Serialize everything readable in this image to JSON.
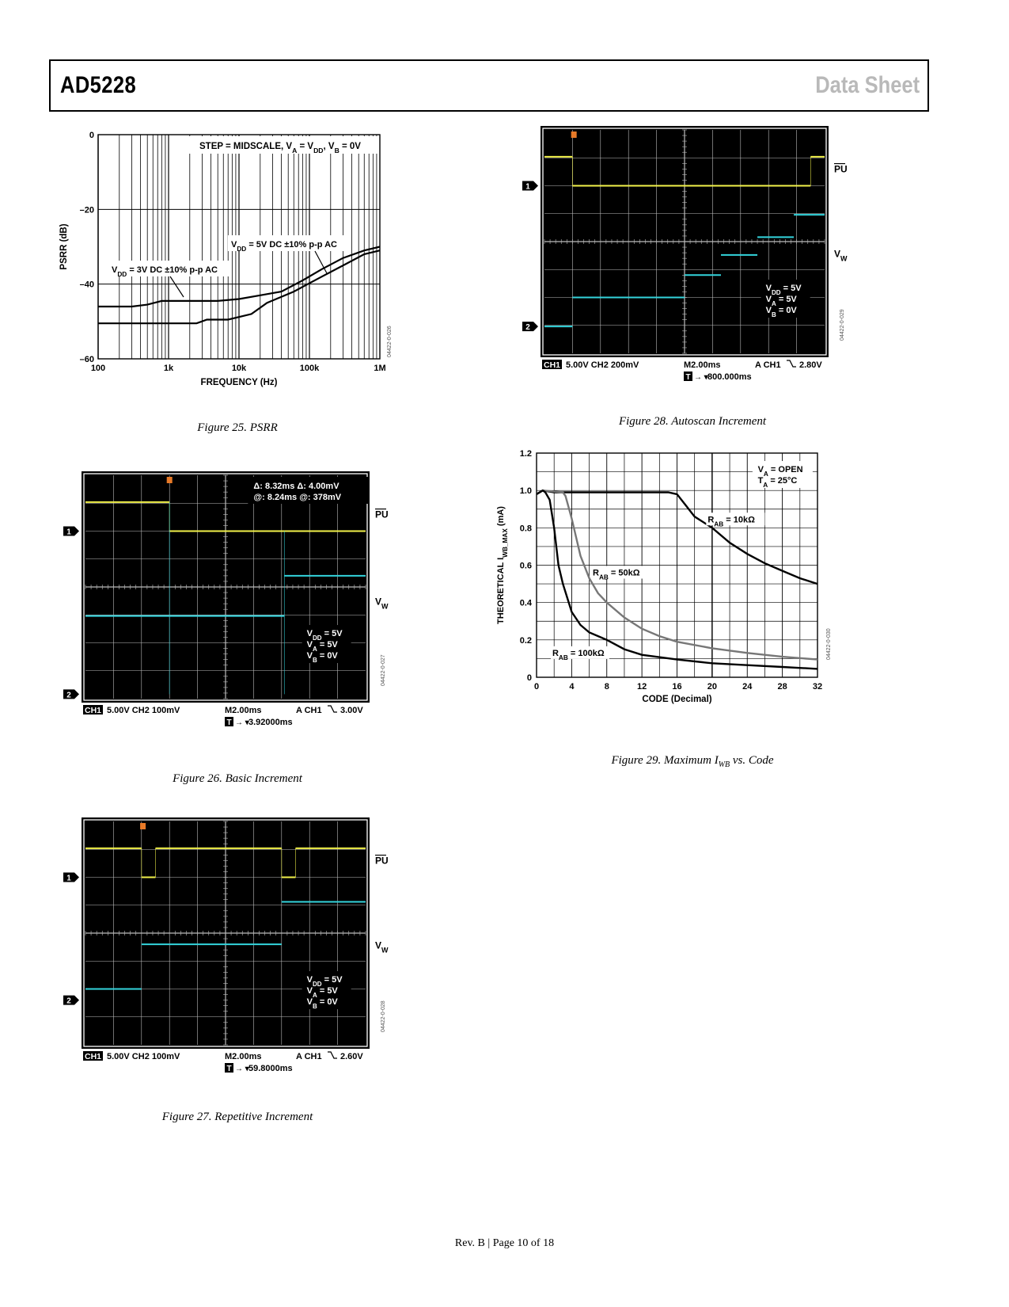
{
  "header": {
    "part_number": "AD5228",
    "doc_type": "Data Sheet"
  },
  "figures": {
    "fig25": {
      "caption": "Figure 25. PSRR",
      "chart_data": {
        "type": "line",
        "title": "STEP = MIDSCALE, V_A = V_DD, V_B = 0V",
        "xlabel": "FREQUENCY (Hz)",
        "ylabel": "PSRR (dB)",
        "xscale": "log",
        "xlim": [
          100,
          1000000
        ],
        "ylim": [
          -60,
          0
        ],
        "xticks": [
          "100",
          "1k",
          "10k",
          "100k",
          "1M"
        ],
        "yticks": [
          "0",
          "–20",
          "–40",
          "–60"
        ],
        "code": "04422-0-026",
        "series": [
          {
            "name": "V_DD = 3V DC ±10% p-p AC",
            "points": [
              [
                100,
                -46
              ],
              [
                300,
                -46
              ],
              [
                500,
                -45.5
              ],
              [
                800,
                -44.5
              ],
              [
                1500,
                -44.5
              ],
              [
                5000,
                -44.5
              ],
              [
                10000,
                -44
              ],
              [
                20000,
                -43
              ],
              [
                40000,
                -42
              ],
              [
                80000,
                -39
              ],
              [
                150000,
                -36
              ],
              [
                300000,
                -33
              ],
              [
                600000,
                -31
              ],
              [
                1000000,
                -30
              ]
            ]
          },
          {
            "name": "V_DD = 5V DC ±10% p-p AC",
            "points": [
              [
                100,
                -50.5
              ],
              [
                1500,
                -50.5
              ],
              [
                2500,
                -50.5
              ],
              [
                3500,
                -49.5
              ],
              [
                7000,
                -49.5
              ],
              [
                15000,
                -48
              ],
              [
                25000,
                -45
              ],
              [
                60000,
                -42
              ],
              [
                150000,
                -38
              ],
              [
                300000,
                -35
              ],
              [
                600000,
                -32
              ],
              [
                1000000,
                -31
              ]
            ]
          }
        ]
      }
    },
    "fig26": {
      "caption": "Figure 26. Basic Increment",
      "meas1": "Δ: 8.32ms   Δ: 4.00mV",
      "meas2": "@: 8.24ms  @: 378mV",
      "status_ch1": "CH1",
      "status_a": "5.00V    CH2  100mV",
      "status_b": "M2.00ms",
      "status_c": "A  CH1",
      "status_d": "3.00V",
      "trig_label": "T",
      "trig_time": "3.92000ms",
      "code": "04422-0-027"
    },
    "fig27": {
      "caption": "Figure 27. Repetitive Increment",
      "status_ch1": "CH1",
      "status_a": "5.00V    CH2  100mV",
      "status_b": "M2.00ms",
      "status_c": "A  CH1",
      "status_d": "2.60V",
      "trig_label": "T",
      "trig_time": "59.8000ms",
      "code": "04422-0-028"
    },
    "fig28": {
      "caption": "Figure 28. Autoscan Increment",
      "status_ch1": "CH1",
      "status_a": "5.00V    CH2  200mV",
      "status_b": "M2.00ms",
      "status_c": "A  CH1",
      "status_d": "2.80V",
      "trig_label": "T",
      "trig_time": "800.000ms",
      "code": "04422-0-029"
    },
    "fig29": {
      "caption": "Figure 29. Maximum I_WB vs. Code",
      "chart_data": {
        "type": "line",
        "xlabel": "CODE (Decimal)",
        "ylabel": "THEORETICAL I_WB_MAX (mA)",
        "xlim": [
          0,
          32
        ],
        "ylim": [
          0,
          1.2
        ],
        "xticks": [
          "0",
          "4",
          "8",
          "12",
          "16",
          "20",
          "24",
          "28",
          "32"
        ],
        "yticks": [
          "1.2",
          "1.0",
          "0.8",
          "0.6",
          "0.4",
          "0.2",
          "0"
        ],
        "legend": "V_A = OPEN, T_A = 25°C",
        "code": "04422-0-030",
        "series": [
          {
            "name": "R_AB = 10kΩ",
            "color": "#000000",
            "points": [
              [
                0,
                0.98
              ],
              [
                0.7,
                1.0
              ],
              [
                2,
                0.99
              ],
              [
                15,
                0.99
              ],
              [
                16,
                0.98
              ],
              [
                17,
                0.92
              ],
              [
                18,
                0.86
              ],
              [
                20,
                0.8
              ],
              [
                22,
                0.72
              ],
              [
                24,
                0.66
              ],
              [
                26,
                0.61
              ],
              [
                28,
                0.57
              ],
              [
                30,
                0.53
              ],
              [
                32,
                0.5
              ]
            ]
          },
          {
            "name": "R_AB = 50kΩ",
            "color": "#777777",
            "points": [
              [
                0,
                0.98
              ],
              [
                0.7,
                1.0
              ],
              [
                3,
                0.99
              ],
              [
                3.3,
                0.97
              ],
              [
                4,
                0.85
              ],
              [
                5,
                0.65
              ],
              [
                6,
                0.53
              ],
              [
                7,
                0.45
              ],
              [
                8,
                0.4
              ],
              [
                10,
                0.32
              ],
              [
                12,
                0.26
              ],
              [
                14,
                0.22
              ],
              [
                16,
                0.19
              ],
              [
                20,
                0.155
              ],
              [
                24,
                0.13
              ],
              [
                28,
                0.11
              ],
              [
                32,
                0.095
              ]
            ]
          },
          {
            "name": "R_AB = 100kΩ",
            "color": "#000000",
            "points": [
              [
                0,
                0.98
              ],
              [
                0.7,
                1.0
              ],
              [
                1,
                0.99
              ],
              [
                1.5,
                0.95
              ],
              [
                2,
                0.8
              ],
              [
                2.5,
                0.6
              ],
              [
                3,
                0.5
              ],
              [
                4,
                0.35
              ],
              [
                5,
                0.28
              ],
              [
                6,
                0.24
              ],
              [
                8,
                0.2
              ],
              [
                10,
                0.15
              ],
              [
                12,
                0.12
              ],
              [
                16,
                0.095
              ],
              [
                20,
                0.075
              ],
              [
                24,
                0.065
              ],
              [
                28,
                0.055
              ],
              [
                32,
                0.045
              ]
            ]
          }
        ]
      }
    }
  },
  "labels": {
    "pu": "PU",
    "vw": "V",
    "vw_sub": "W",
    "ch_marker_1": "1",
    "ch_marker_2": "2",
    "cond_vdd": "V",
    "cond_vdd_sub": "DD",
    "cond_vdd_val": " = 5V",
    "cond_va": "V",
    "cond_va_sub": "A",
    "cond_va_val": " = 5V",
    "cond_vb": "V",
    "cond_vb_sub": "B",
    "cond_vb_val": " = 0V"
  },
  "footer": "Rev. B | Page 10 of 18"
}
